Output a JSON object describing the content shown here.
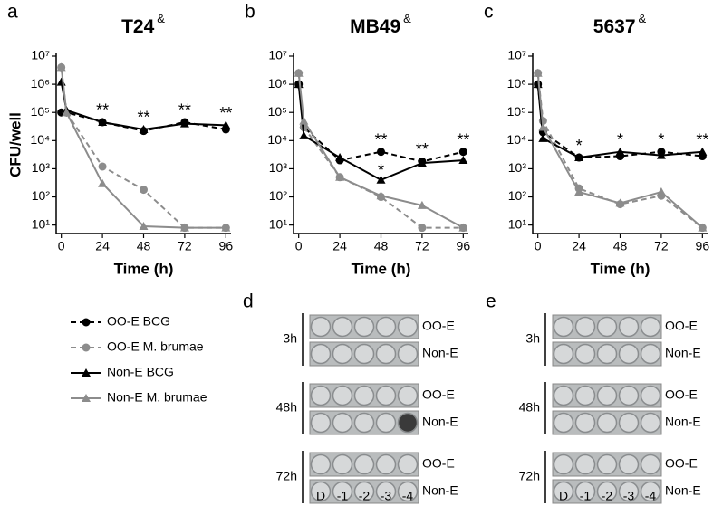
{
  "chart_data": [
    {
      "type": "line",
      "panel": "a",
      "title": "T24",
      "title_mark": "&",
      "ylabel": "CFU/well",
      "xlabel": "Time (h)",
      "x": [
        0,
        3,
        24,
        48,
        72,
        96
      ],
      "xlim": [
        -3,
        99
      ],
      "xticks": [
        0,
        24,
        48,
        72,
        96
      ],
      "log_scale": true,
      "ylim": [
        5,
        10000000
      ],
      "yticks": [
        {
          "value": 10,
          "label": "10¹"
        },
        {
          "value": 100,
          "label": "10²"
        },
        {
          "value": 1000,
          "label": "10³"
        },
        {
          "value": 10000,
          "label": "10⁴"
        },
        {
          "value": 100000,
          "label": "10⁵"
        },
        {
          "value": 1000000,
          "label": "10⁶"
        },
        {
          "value": 10000000,
          "label": "10⁷"
        }
      ],
      "series": [
        {
          "name": "OO-E BCG",
          "color": "#000000",
          "values": [
            100000,
            100000,
            45000,
            22000,
            45000,
            25000
          ]
        },
        {
          "name": "OO-E M. brumae",
          "color": "#8c8c8c",
          "values": [
            4000000,
            100000,
            1200,
            180,
            8,
            8
          ]
        },
        {
          "name": "Non-E BCG",
          "color": "#000000",
          "values": [
            1200000,
            120000,
            45000,
            25000,
            40000,
            35000
          ]
        },
        {
          "name": "Non-E M. brumae",
          "color": "#8c8c8c",
          "values": [
            4000000,
            100000,
            300,
            9,
            8,
            8
          ]
        }
      ],
      "annotations": [
        {
          "x": 24,
          "text": "**"
        },
        {
          "x": 48,
          "text": "**"
        },
        {
          "x": 72,
          "text": "**"
        },
        {
          "x": 96,
          "text": "**"
        }
      ]
    },
    {
      "type": "line",
      "panel": "b",
      "title": "MB49",
      "title_mark": "&",
      "xlabel": "Time (h)",
      "x": [
        0,
        3,
        24,
        48,
        72,
        96
      ],
      "xlim": [
        -3,
        99
      ],
      "xticks": [
        0,
        24,
        48,
        72,
        96
      ],
      "log_scale": true,
      "ylim": [
        5,
        10000000
      ],
      "yticks": [
        {
          "value": 10,
          "label": "10¹"
        },
        {
          "value": 100,
          "label": "10²"
        },
        {
          "value": 1000,
          "label": "10³"
        },
        {
          "value": 10000,
          "label": "10⁴"
        },
        {
          "value": 100000,
          "label": "10⁵"
        },
        {
          "value": 1000000,
          "label": "10⁶"
        },
        {
          "value": 10000000,
          "label": "10⁷"
        }
      ],
      "series": [
        {
          "name": "OO-E BCG",
          "color": "#000000",
          "values": [
            1000000,
            30000,
            2000,
            4000,
            1800,
            4000
          ]
        },
        {
          "name": "OO-E M. brumae",
          "color": "#8c8c8c",
          "values": [
            2500000,
            30000,
            500,
            100,
            8,
            8
          ]
        },
        {
          "name": "Non-E BCG",
          "color": "#000000",
          "values": [
            1000000,
            15000,
            2500,
            400,
            1600,
            2000
          ]
        },
        {
          "name": "Non-E M. brumae",
          "color": "#8c8c8c",
          "values": [
            2500000,
            50000,
            500,
            110,
            50,
            8
          ]
        }
      ],
      "annotations": [
        {
          "x": 48,
          "text": "**"
        },
        {
          "x": 48,
          "text": "*"
        },
        {
          "x": 72,
          "text": "**"
        },
        {
          "x": 96,
          "text": "**"
        }
      ]
    },
    {
      "type": "line",
      "panel": "c",
      "title": "5637",
      "title_mark": "&",
      "xlabel": "Time (h)",
      "x": [
        0,
        3,
        24,
        48,
        72,
        96
      ],
      "xlim": [
        -3,
        99
      ],
      "xticks": [
        0,
        24,
        48,
        72,
        96
      ],
      "log_scale": true,
      "ylim": [
        5,
        10000000
      ],
      "yticks": [
        {
          "value": 10,
          "label": "10¹"
        },
        {
          "value": 100,
          "label": "10²"
        },
        {
          "value": 1000,
          "label": "10³"
        },
        {
          "value": 10000,
          "label": "10⁴"
        },
        {
          "value": 100000,
          "label": "10⁵"
        },
        {
          "value": 1000000,
          "label": "10⁶"
        },
        {
          "value": 10000000,
          "label": "10⁷"
        }
      ],
      "series": [
        {
          "name": "OO-E BCG",
          "color": "#000000",
          "values": [
            1000000,
            20000,
            2500,
            2800,
            4000,
            2800
          ]
        },
        {
          "name": "OO-E M. brumae",
          "color": "#8c8c8c",
          "values": [
            2500000,
            50000,
            200,
            55,
            110,
            8
          ]
        },
        {
          "name": "Non-E BCG",
          "color": "#000000",
          "values": [
            1000000,
            12000,
            2500,
            4000,
            3000,
            4000
          ]
        },
        {
          "name": "Non-E M. brumae",
          "color": "#8c8c8c",
          "values": [
            2500000,
            30000,
            150,
            60,
            150,
            8
          ]
        }
      ],
      "annotations": [
        {
          "x": 24,
          "text": "*"
        },
        {
          "x": 48,
          "text": "*"
        },
        {
          "x": 72,
          "text": "*"
        },
        {
          "x": 96,
          "text": "**"
        }
      ]
    }
  ],
  "plates": [
    {
      "panel": "d",
      "columns": [
        "D",
        "-1",
        "-2",
        "-3",
        "-4"
      ],
      "groups": [
        {
          "time": "3h",
          "rows": [
            "OO-E",
            "Non-E"
          ]
        },
        {
          "time": "48h",
          "rows": [
            "OO-E",
            "Non-E"
          ]
        },
        {
          "time": "72h",
          "rows": [
            "OO-E",
            "Non-E"
          ]
        }
      ]
    },
    {
      "panel": "e",
      "columns": [
        "D",
        "-1",
        "-2",
        "-3",
        "-4"
      ],
      "groups": [
        {
          "time": "3h",
          "rows": [
            "OO-E",
            "Non-E"
          ]
        },
        {
          "time": "48h",
          "rows": [
            "OO-E",
            "Non-E"
          ]
        },
        {
          "time": "72h",
          "rows": [
            "OO-E",
            "Non-E"
          ]
        }
      ]
    }
  ]
}
